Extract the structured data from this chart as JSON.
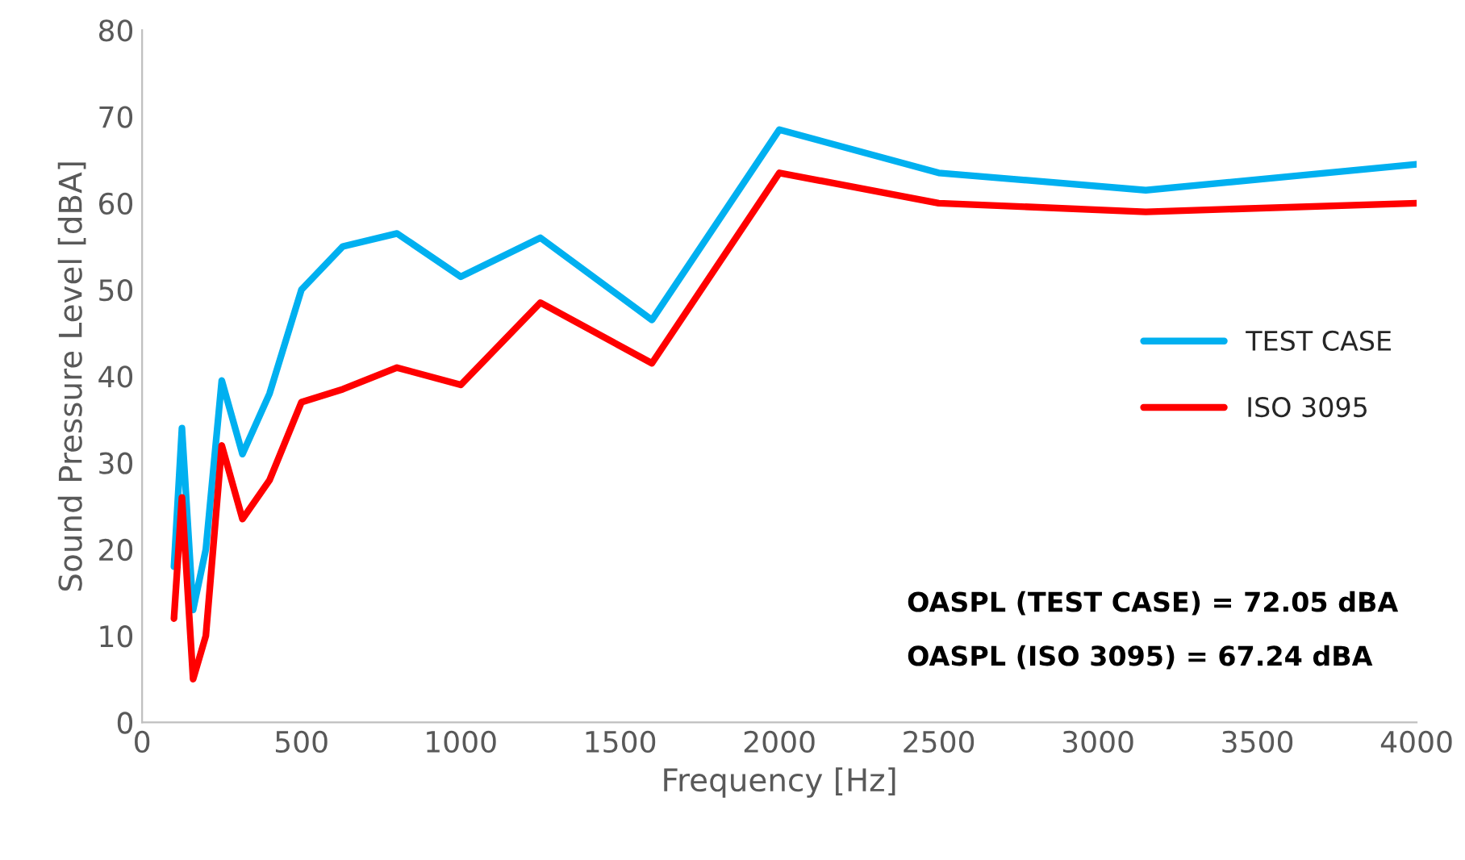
{
  "chart_data": {
    "type": "line",
    "xlabel": "Frequency [Hz]",
    "ylabel": "Sound Pressure Level [dBA]",
    "x": [
      100,
      125,
      160,
      200,
      250,
      315,
      400,
      500,
      630,
      800,
      1000,
      1250,
      1600,
      2000,
      2500,
      3150,
      4000
    ],
    "series": [
      {
        "name": "TEST CASE",
        "color": "#00b0f0",
        "values": [
          18,
          34,
          13,
          20,
          39.5,
          31,
          38,
          50,
          55,
          56.5,
          51.5,
          56,
          46.5,
          68.5,
          63.5,
          61.5,
          64.5
        ]
      },
      {
        "name": "ISO 3095",
        "color": "#ff0000",
        "values": [
          12,
          26,
          5,
          10,
          32,
          23.5,
          28,
          37,
          38.5,
          41,
          39,
          48.5,
          41.5,
          63.5,
          60,
          59,
          60
        ]
      }
    ],
    "xlim": [
      0,
      4000
    ],
    "xticks": [
      0,
      500,
      1000,
      1500,
      2000,
      2500,
      3000,
      3500,
      4000
    ],
    "ylim": [
      0,
      80
    ],
    "yticks": [
      0,
      10,
      20,
      30,
      40,
      50,
      60,
      70,
      80
    ],
    "grid": false,
    "legend": "right",
    "marker": "none",
    "line_style": "solid",
    "annotations": [
      "OASPL (TEST CASE) = 72.05 dBA",
      "OASPL (ISO 3095) = 67.24 dBA"
    ]
  }
}
